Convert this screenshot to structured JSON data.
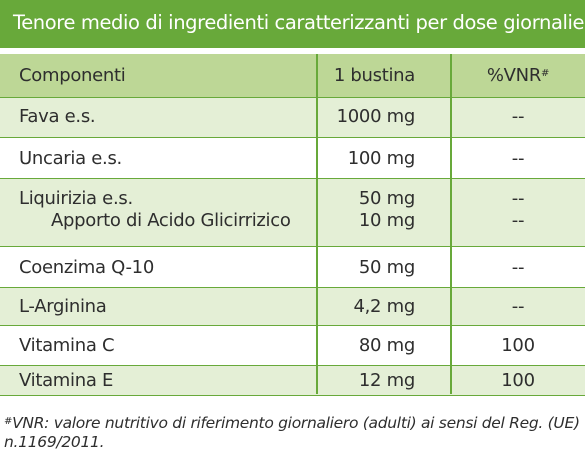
{
  "title": "Tenore medio di ingredienti caratterizzanti per dose giornaliera",
  "table": {
    "headers": {
      "component": "Componenti",
      "dose": "1 bustina",
      "vnr": "%VNR",
      "vnr_mark": "#"
    },
    "rows": [
      {
        "name": "Fava e.s.",
        "dose": "1000 mg",
        "vnr": "--"
      },
      {
        "name": "Uncaria e.s.",
        "dose": "100 mg",
        "vnr": "--"
      },
      {
        "name": "Liquirizia e.s.",
        "dose": "50 mg",
        "vnr": "--",
        "sub_name": "Apporto di Acido Glicirrizico",
        "sub_dose": "10 mg",
        "sub_vnr": "--"
      },
      {
        "name": "Coenzima Q-10",
        "dose": "50 mg",
        "vnr": "--"
      },
      {
        "name": "L-Arginina",
        "dose": "4,2 mg",
        "vnr": "--"
      },
      {
        "name": "Vitamina C",
        "dose": "80 mg",
        "vnr": "100"
      },
      {
        "name": "Vitamina E",
        "dose": "12 mg",
        "vnr": "100"
      }
    ]
  },
  "footnote": {
    "mark": "#",
    "text": "VNR: valore nutritivo di riferimento giornaliero (adulti) ai sensi del Reg. (UE) n.1169/2011."
  },
  "colors": {
    "brand_green": "#68a93a",
    "header_fill": "#bdd796",
    "row_tint": "#e4efd6"
  }
}
